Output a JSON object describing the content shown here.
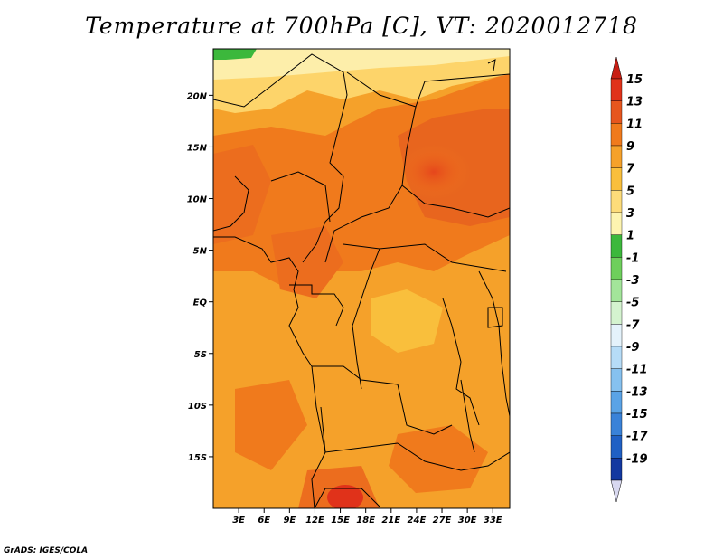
{
  "title": "Temperature at 700hPa [C], VT: 2020012718",
  "footer": "GrADS: IGES/COLA",
  "map": {
    "lon_range": [
      0,
      35
    ],
    "lat_range": [
      -20,
      24.5
    ],
    "lon_ticks": [
      "3E",
      "6E",
      "9E",
      "12E",
      "15E",
      "18E",
      "21E",
      "24E",
      "27E",
      "30E",
      "33E"
    ],
    "lat_ticks": [
      "20N",
      "15N",
      "10N",
      "5N",
      "EQ",
      "5S",
      "10S",
      "15S"
    ],
    "field": "temperature",
    "level": "700hPa",
    "units": "C",
    "valid_time": "2020012718"
  },
  "colorbar": {
    "labels": [
      "15",
      "13",
      "11",
      "9",
      "7",
      "5",
      "3",
      "1",
      "-1",
      "-3",
      "-5",
      "-7",
      "-9",
      "-11",
      "-13",
      "-15",
      "-17",
      "-19"
    ],
    "colors": [
      "#e0321a",
      "#e6561e",
      "#f07a1c",
      "#f5a12a",
      "#f9bf3c",
      "#fddc7a",
      "#fdf4b0",
      "#3cb83c",
      "#6ecf5c",
      "#a3e59a",
      "#d4f3cf",
      "#e4f2fb",
      "#b6dcf7",
      "#86c1ef",
      "#5aa3e6",
      "#3a82d8",
      "#2060c4",
      "#1338a0",
      "#0a1a78"
    ],
    "top_arrow_color": "#c81e14",
    "bottom_arrow_color": "#d8d8f0"
  }
}
